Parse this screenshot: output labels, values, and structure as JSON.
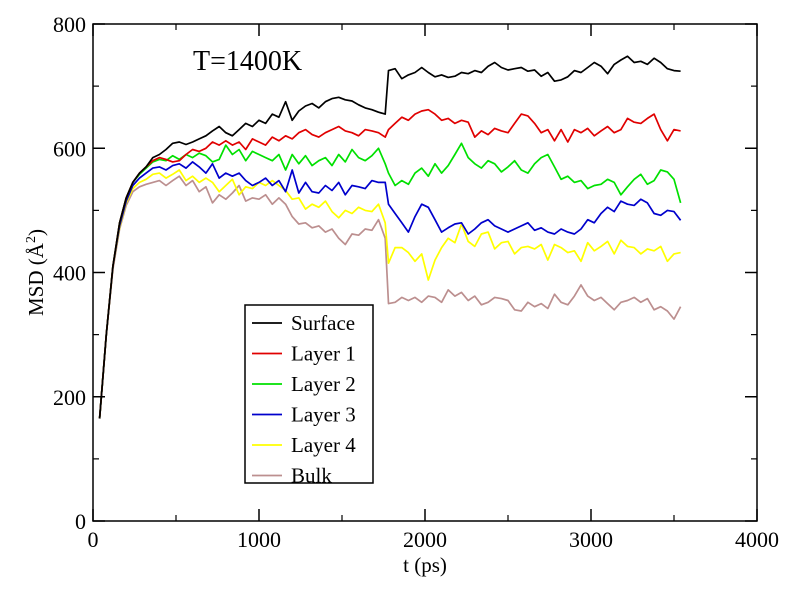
{
  "chart_data": {
    "type": "line",
    "annotation": "T=1400K",
    "xlabel": "t (ps)",
    "ylabel_text": "MSD (",
    "ylabel_unit": "Å",
    "ylabel_sup": "2",
    "ylabel_close": ")",
    "xlim": [
      0,
      4000
    ],
    "ylim": [
      0,
      800
    ],
    "xticks": [
      0,
      1000,
      2000,
      3000,
      4000
    ],
    "yticks": [
      0,
      200,
      400,
      600,
      800
    ],
    "xtick_labels": [
      "0",
      "1000",
      "2000",
      "3000",
      "4000"
    ],
    "ytick_labels": [
      "0",
      "200",
      "400",
      "600",
      "800"
    ],
    "grid": false,
    "legend_position": "lower-center",
    "series": [
      {
        "name": "Surface",
        "color": "#000000",
        "x": [
          40,
          80,
          120,
          160,
          200,
          240,
          280,
          320,
          360,
          400,
          440,
          480,
          520,
          560,
          600,
          640,
          680,
          720,
          760,
          800,
          840,
          880,
          920,
          960,
          1000,
          1040,
          1080,
          1120,
          1160,
          1200,
          1240,
          1280,
          1320,
          1360,
          1400,
          1440,
          1480,
          1520,
          1560,
          1600,
          1640,
          1680,
          1720,
          1760,
          1780,
          1820,
          1860,
          1900,
          1940,
          1980,
          2020,
          2060,
          2100,
          2140,
          2180,
          2220,
          2260,
          2300,
          2340,
          2380,
          2420,
          2460,
          2500,
          2540,
          2580,
          2620,
          2660,
          2700,
          2740,
          2780,
          2820,
          2860,
          2900,
          2940,
          2980,
          3020,
          3060,
          3100,
          3140,
          3180,
          3220,
          3260,
          3300,
          3340,
          3380,
          3420,
          3460,
          3500,
          3540
        ],
        "y": [
          165,
          300,
          410,
          480,
          520,
          545,
          560,
          570,
          585,
          590,
          598,
          608,
          610,
          606,
          610,
          615,
          620,
          628,
          635,
          625,
          620,
          630,
          640,
          635,
          645,
          640,
          655,
          650,
          675,
          645,
          660,
          668,
          672,
          665,
          675,
          680,
          682,
          678,
          676,
          670,
          665,
          662,
          658,
          655,
          725,
          728,
          712,
          718,
          722,
          730,
          722,
          715,
          718,
          714,
          716,
          722,
          720,
          725,
          722,
          732,
          738,
          730,
          726,
          728,
          730,
          724,
          726,
          716,
          722,
          708,
          710,
          715,
          725,
          722,
          730,
          738,
          732,
          720,
          735,
          742,
          748,
          738,
          740,
          735,
          745,
          738,
          728,
          725,
          724
        ]
      },
      {
        "name": "Layer 1",
        "color": "#e00000",
        "x": [
          40,
          80,
          120,
          160,
          200,
          240,
          280,
          320,
          360,
          400,
          440,
          480,
          520,
          560,
          600,
          640,
          680,
          720,
          760,
          800,
          840,
          880,
          920,
          960,
          1000,
          1040,
          1080,
          1120,
          1160,
          1200,
          1240,
          1280,
          1320,
          1360,
          1400,
          1440,
          1480,
          1520,
          1560,
          1600,
          1640,
          1680,
          1720,
          1760,
          1780,
          1820,
          1860,
          1900,
          1940,
          1980,
          2020,
          2060,
          2100,
          2140,
          2180,
          2220,
          2260,
          2300,
          2340,
          2380,
          2420,
          2460,
          2500,
          2540,
          2580,
          2620,
          2660,
          2700,
          2740,
          2780,
          2820,
          2860,
          2900,
          2940,
          2980,
          3020,
          3060,
          3100,
          3140,
          3180,
          3220,
          3260,
          3300,
          3340,
          3380,
          3420,
          3460,
          3500,
          3540
        ],
        "y": [
          165,
          300,
          410,
          480,
          520,
          545,
          560,
          570,
          580,
          585,
          582,
          578,
          580,
          590,
          598,
          595,
          600,
          610,
          605,
          612,
          605,
          610,
          598,
          615,
          610,
          605,
          618,
          612,
          620,
          615,
          625,
          630,
          622,
          618,
          625,
          630,
          635,
          628,
          625,
          620,
          630,
          628,
          625,
          618,
          630,
          640,
          650,
          645,
          655,
          660,
          662,
          655,
          645,
          648,
          640,
          645,
          642,
          618,
          628,
          622,
          632,
          628,
          625,
          640,
          655,
          652,
          640,
          625,
          630,
          612,
          630,
          610,
          630,
          625,
          632,
          620,
          628,
          635,
          625,
          630,
          648,
          642,
          640,
          648,
          655,
          630,
          612,
          630,
          628
        ]
      },
      {
        "name": "Layer 2",
        "color": "#00e000",
        "x": [
          40,
          80,
          120,
          160,
          200,
          240,
          280,
          320,
          360,
          400,
          440,
          480,
          520,
          560,
          600,
          640,
          680,
          720,
          760,
          800,
          840,
          880,
          920,
          960,
          1000,
          1040,
          1080,
          1120,
          1160,
          1200,
          1240,
          1280,
          1320,
          1360,
          1400,
          1440,
          1480,
          1520,
          1560,
          1600,
          1640,
          1680,
          1720,
          1760,
          1780,
          1820,
          1860,
          1900,
          1940,
          1980,
          2020,
          2060,
          2100,
          2140,
          2180,
          2220,
          2260,
          2300,
          2340,
          2380,
          2420,
          2460,
          2500,
          2540,
          2580,
          2620,
          2660,
          2700,
          2740,
          2780,
          2820,
          2860,
          2900,
          2940,
          2980,
          3020,
          3060,
          3100,
          3140,
          3180,
          3220,
          3260,
          3300,
          3340,
          3380,
          3420,
          3460,
          3500,
          3540
        ],
        "y": [
          165,
          300,
          410,
          480,
          520,
          545,
          558,
          568,
          578,
          582,
          580,
          588,
          582,
          590,
          585,
          592,
          588,
          578,
          582,
          605,
          590,
          598,
          580,
          595,
          590,
          585,
          580,
          590,
          565,
          590,
          575,
          588,
          572,
          580,
          585,
          572,
          590,
          578,
          598,
          585,
          580,
          588,
          600,
          575,
          560,
          540,
          548,
          542,
          560,
          568,
          555,
          575,
          560,
          572,
          590,
          608,
          585,
          575,
          568,
          580,
          575,
          562,
          570,
          580,
          565,
          560,
          575,
          585,
          590,
          570,
          550,
          555,
          545,
          548,
          535,
          540,
          542,
          550,
          545,
          525,
          538,
          550,
          558,
          542,
          548,
          565,
          562,
          550,
          512
        ]
      },
      {
        "name": "Layer 3",
        "color": "#0000cc",
        "x": [
          40,
          80,
          120,
          160,
          200,
          240,
          280,
          320,
          360,
          400,
          440,
          480,
          520,
          560,
          600,
          640,
          680,
          720,
          760,
          800,
          840,
          880,
          920,
          960,
          1000,
          1040,
          1080,
          1120,
          1160,
          1200,
          1240,
          1280,
          1320,
          1360,
          1400,
          1440,
          1480,
          1520,
          1560,
          1600,
          1640,
          1680,
          1720,
          1760,
          1780,
          1820,
          1860,
          1900,
          1940,
          1980,
          2020,
          2060,
          2100,
          2140,
          2180,
          2220,
          2260,
          2300,
          2340,
          2380,
          2420,
          2460,
          2500,
          2540,
          2580,
          2620,
          2660,
          2700,
          2740,
          2780,
          2820,
          2860,
          2900,
          2940,
          2980,
          3020,
          3060,
          3100,
          3140,
          3180,
          3220,
          3260,
          3300,
          3340,
          3380,
          3420,
          3460,
          3500,
          3540
        ],
        "y": [
          165,
          300,
          410,
          475,
          515,
          540,
          552,
          560,
          568,
          570,
          565,
          572,
          575,
          568,
          578,
          570,
          560,
          575,
          552,
          560,
          555,
          560,
          548,
          540,
          545,
          552,
          540,
          548,
          530,
          565,
          528,
          545,
          530,
          528,
          540,
          532,
          545,
          525,
          540,
          538,
          535,
          548,
          545,
          545,
          510,
          495,
          480,
          465,
          490,
          510,
          505,
          485,
          465,
          472,
          478,
          480,
          462,
          470,
          480,
          485,
          475,
          470,
          465,
          470,
          475,
          480,
          468,
          472,
          465,
          462,
          470,
          465,
          462,
          470,
          485,
          480,
          495,
          505,
          498,
          515,
          510,
          508,
          518,
          512,
          495,
          492,
          500,
          498,
          484
        ]
      },
      {
        "name": "Layer 4",
        "color": "#ffff00",
        "x": [
          40,
          80,
          120,
          160,
          200,
          240,
          280,
          320,
          360,
          400,
          440,
          480,
          520,
          560,
          600,
          640,
          680,
          720,
          760,
          800,
          840,
          880,
          920,
          960,
          1000,
          1040,
          1080,
          1120,
          1160,
          1200,
          1240,
          1280,
          1320,
          1360,
          1400,
          1440,
          1480,
          1520,
          1560,
          1600,
          1640,
          1680,
          1720,
          1760,
          1780,
          1820,
          1860,
          1900,
          1940,
          1980,
          2020,
          2060,
          2100,
          2140,
          2180,
          2220,
          2260,
          2300,
          2340,
          2380,
          2420,
          2460,
          2500,
          2540,
          2580,
          2620,
          2660,
          2700,
          2740,
          2780,
          2820,
          2860,
          2900,
          2940,
          2980,
          3020,
          3060,
          3100,
          3140,
          3180,
          3220,
          3260,
          3300,
          3340,
          3380,
          3420,
          3460,
          3500,
          3540
        ],
        "y": [
          165,
          300,
          410,
          472,
          512,
          535,
          545,
          550,
          558,
          560,
          552,
          558,
          565,
          548,
          555,
          545,
          552,
          545,
          530,
          540,
          550,
          525,
          538,
          535,
          545,
          540,
          548,
          540,
          532,
          518,
          520,
          502,
          510,
          505,
          515,
          498,
          488,
          500,
          495,
          505,
          500,
          498,
          510,
          480,
          415,
          440,
          440,
          432,
          418,
          430,
          388,
          420,
          440,
          455,
          448,
          478,
          450,
          442,
          462,
          465,
          438,
          448,
          450,
          430,
          440,
          442,
          438,
          445,
          420,
          445,
          440,
          432,
          435,
          418,
          448,
          435,
          442,
          450,
          430,
          452,
          442,
          440,
          430,
          438,
          435,
          442,
          418,
          430,
          432
        ]
      },
      {
        "name": "Bulk",
        "color": "#bc8f8f",
        "x": [
          40,
          80,
          120,
          160,
          200,
          240,
          280,
          320,
          360,
          400,
          440,
          480,
          520,
          560,
          600,
          640,
          680,
          720,
          760,
          800,
          840,
          880,
          920,
          960,
          1000,
          1040,
          1080,
          1120,
          1160,
          1200,
          1240,
          1280,
          1320,
          1360,
          1400,
          1440,
          1480,
          1520,
          1560,
          1600,
          1640,
          1680,
          1720,
          1760,
          1780,
          1820,
          1860,
          1900,
          1940,
          1980,
          2020,
          2060,
          2100,
          2140,
          2180,
          2220,
          2260,
          2300,
          2340,
          2380,
          2420,
          2460,
          2500,
          2540,
          2580,
          2620,
          2660,
          2700,
          2740,
          2780,
          2820,
          2860,
          2900,
          2940,
          2980,
          3020,
          3060,
          3100,
          3140,
          3180,
          3220,
          3260,
          3300,
          3340,
          3380,
          3420,
          3460,
          3500,
          3540
        ],
        "y": [
          165,
          300,
          405,
          470,
          508,
          530,
          538,
          542,
          545,
          548,
          540,
          548,
          555,
          540,
          548,
          530,
          538,
          512,
          525,
          518,
          528,
          540,
          515,
          520,
          518,
          525,
          510,
          520,
          510,
          490,
          478,
          480,
          472,
          475,
          465,
          470,
          455,
          445,
          462,
          460,
          470,
          468,
          485,
          455,
          350,
          352,
          360,
          355,
          360,
          352,
          362,
          360,
          352,
          372,
          362,
          368,
          355,
          362,
          348,
          352,
          360,
          358,
          355,
          340,
          338,
          352,
          345,
          350,
          342,
          365,
          352,
          348,
          362,
          380,
          362,
          355,
          360,
          350,
          340,
          352,
          355,
          360,
          352,
          358,
          340,
          345,
          338,
          325,
          345
        ]
      }
    ]
  }
}
